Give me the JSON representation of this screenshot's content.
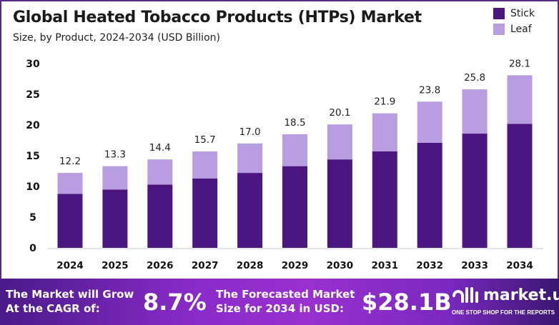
{
  "chart_data": {
    "type": "bar",
    "stacked": true,
    "title": "Global Heated Tobacco Products (HTPs) Market",
    "subtitle": "Size, by Product, 2024-2034 (USD Billion)",
    "categories": [
      "2024",
      "2025",
      "2026",
      "2027",
      "2028",
      "2029",
      "2030",
      "2031",
      "2032",
      "2033",
      "2034"
    ],
    "series": [
      {
        "name": "Stick",
        "color": "#4b1680",
        "values": [
          8.8,
          9.5,
          10.3,
          11.3,
          12.2,
          13.3,
          14.4,
          15.7,
          17.1,
          18.6,
          20.2
        ]
      },
      {
        "name": "Leaf",
        "color": "#b89ee0",
        "values": [
          3.4,
          3.8,
          4.1,
          4.4,
          4.8,
          5.2,
          5.7,
          6.2,
          6.7,
          7.2,
          7.9
        ]
      }
    ],
    "totals": [
      "12.2",
      "13.3",
      "14.4",
      "15.7",
      "17.0",
      "18.5",
      "20.1",
      "21.9",
      "23.8",
      "25.8",
      "28.1"
    ],
    "yticks": [
      0,
      5,
      10,
      15,
      20,
      25,
      30
    ],
    "ylim": [
      0,
      30
    ],
    "grid": false,
    "legend": "top-right"
  },
  "footer": {
    "cagr_label_1": "The Market will Grow",
    "cagr_label_2": "At the CAGR of:",
    "cagr_value": "8.7%",
    "forecast_label_1": "The Forecasted Market",
    "forecast_label_2": "Size for 2034 in USD:",
    "forecast_value": "$28.1B",
    "brand": "market.us",
    "tagline": "ONE STOP SHOP FOR THE REPORTS"
  }
}
